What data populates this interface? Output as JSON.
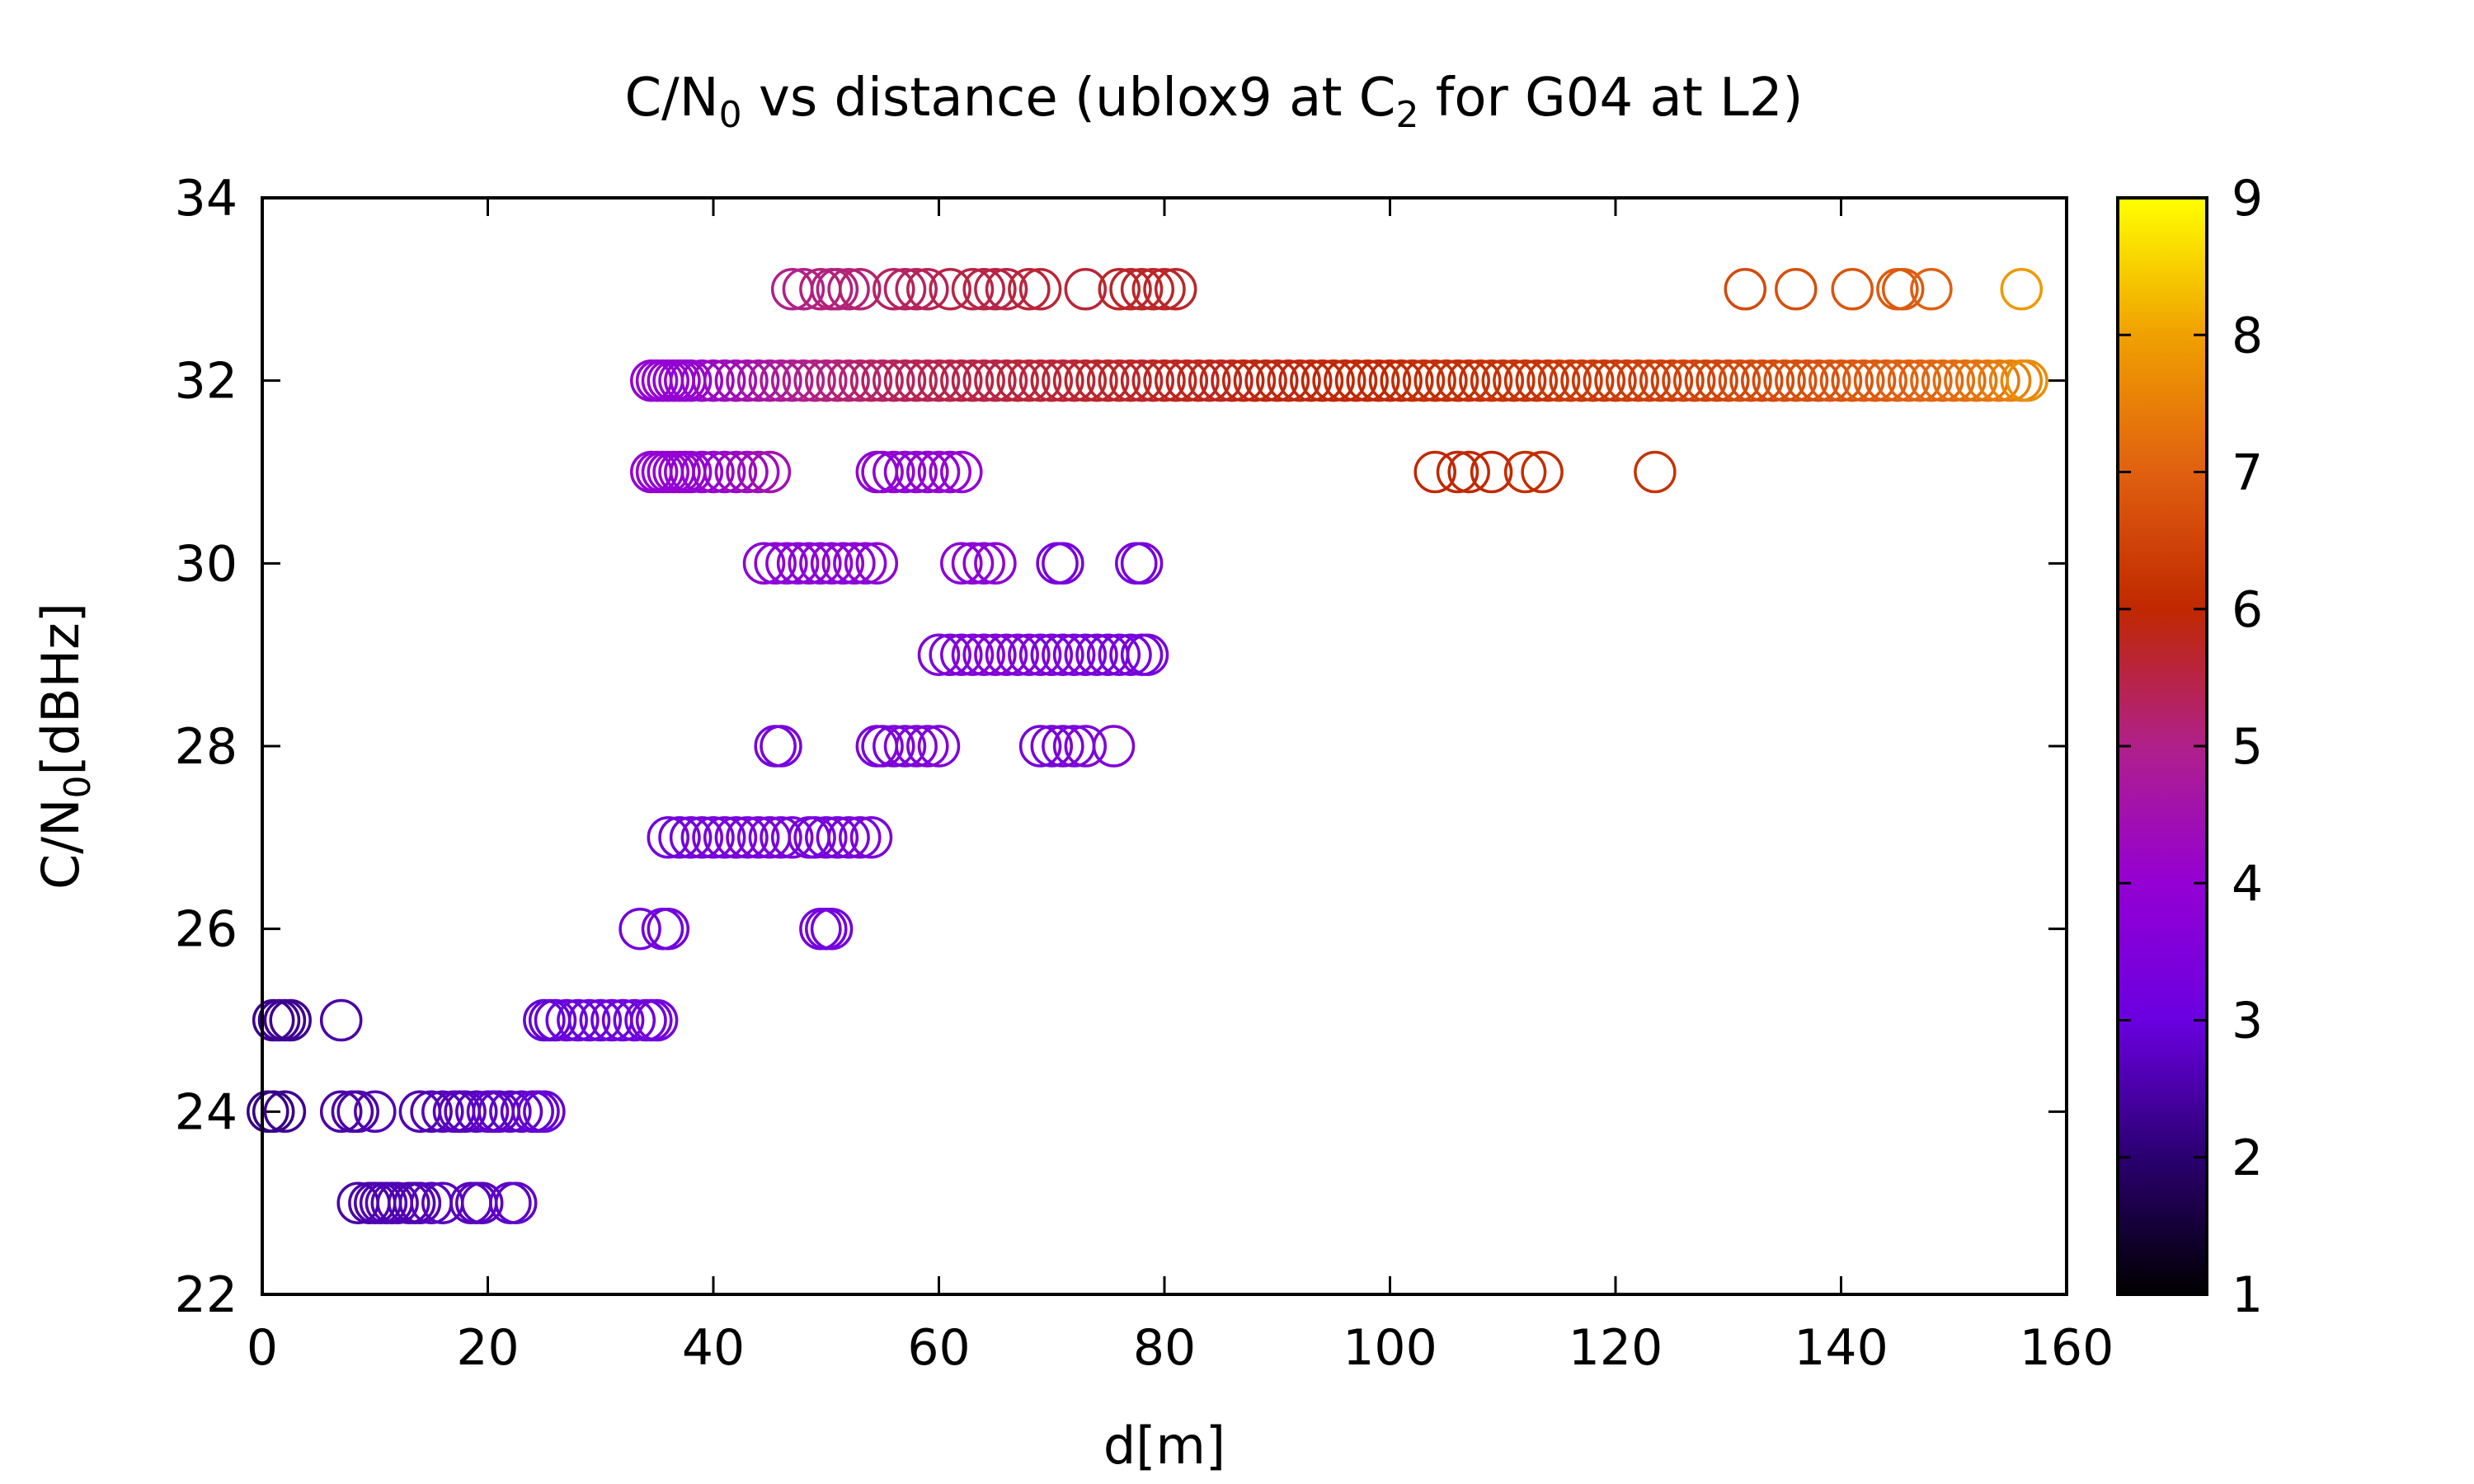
{
  "chart_data": {
    "type": "scatter",
    "title": {
      "pre": "C/N",
      "sub1": "0",
      "mid": " vs distance (ublox9 at C",
      "sub2": "2",
      "post": " for G04 at L2)"
    },
    "xlabel": "d[m]",
    "ylabel": {
      "pre": "C/N",
      "sub": "0",
      "post": "[dBHz]"
    },
    "xlim": [
      0,
      160
    ],
    "ylim": [
      22,
      34
    ],
    "x_ticks": [
      0,
      20,
      40,
      60,
      80,
      100,
      120,
      140,
      160
    ],
    "y_ticks": [
      22,
      24,
      26,
      28,
      30,
      32,
      34
    ],
    "colorbar": {
      "range": [
        1,
        9
      ],
      "ticks": [
        1,
        2,
        3,
        4,
        5,
        6,
        7,
        8,
        9
      ],
      "palette": "black-blue-purple-red-orange-yellow"
    },
    "marker": "open-circle",
    "grid": false,
    "legend": "none",
    "series": [
      {
        "y": 23,
        "x": [
          8.5,
          9.5,
          10,
          10.5,
          11,
          11.5,
          12,
          13,
          13.5,
          14,
          15,
          16,
          18.5,
          19,
          19.5,
          22,
          22.5
        ],
        "c": [
          2.5,
          2.5,
          2.5,
          2.6,
          2.6,
          2.6,
          2.6,
          2.6,
          2.6,
          2.6,
          2.7,
          2.7,
          2.7,
          2.7,
          2.7,
          2.8,
          2.8
        ]
      },
      {
        "y": 24,
        "x": [
          0.5,
          1,
          2,
          7,
          8,
          8.5,
          10,
          14,
          15,
          16,
          17,
          17.5,
          18,
          19,
          20,
          20.5,
          21,
          22,
          23,
          24,
          24.5,
          25
        ],
        "c": [
          2.2,
          2.2,
          2.3,
          2.5,
          2.5,
          2.5,
          2.6,
          2.6,
          2.6,
          2.7,
          2.7,
          2.7,
          2.7,
          2.7,
          2.8,
          2.8,
          2.8,
          2.8,
          2.8,
          2.9,
          2.9,
          2.9
        ]
      },
      {
        "y": 25,
        "x": [
          1,
          1.5,
          2,
          2.5,
          7,
          25,
          25.5,
          26,
          27,
          28,
          29,
          30,
          31,
          32,
          33,
          34,
          34.5,
          35
        ],
        "c": [
          2.3,
          2.3,
          2.3,
          2.3,
          2.5,
          2.9,
          2.9,
          2.9,
          3.0,
          3.0,
          3.0,
          3.0,
          3.1,
          3.1,
          3.1,
          3.1,
          3.2,
          3.2
        ]
      },
      {
        "y": 26,
        "x": [
          33.5,
          35.5,
          36,
          49.5,
          50,
          50.5
        ],
        "c": [
          3.2,
          3.2,
          3.2,
          3.2,
          3.2,
          3.2
        ]
      },
      {
        "y": 27,
        "x": [
          36,
          37,
          38,
          39,
          40,
          41,
          42,
          43,
          44,
          45,
          46,
          47,
          48.5,
          49,
          50,
          51,
          52,
          53,
          54
        ],
        "c": [
          3.2,
          3.2,
          3.2,
          3.3,
          3.3,
          3.3,
          3.3,
          3.3,
          3.4,
          3.4,
          3.4,
          3.3,
          3.3,
          3.3,
          3.3,
          3.3,
          3.3,
          3.4,
          3.4
        ]
      },
      {
        "y": 28,
        "x": [
          45.5,
          46,
          54.5,
          55,
          56,
          57,
          58,
          59,
          60,
          69,
          70,
          71,
          72,
          73,
          75.5
        ],
        "c": [
          3.3,
          3.3,
          3.4,
          3.4,
          3.4,
          3.5,
          3.5,
          3.5,
          3.5,
          3.3,
          3.3,
          3.3,
          3.4,
          3.5,
          3.6
        ]
      },
      {
        "y": 29,
        "x": [
          60,
          61,
          62,
          63,
          64,
          65,
          66,
          67,
          68,
          69,
          70,
          71,
          72,
          73,
          74,
          75,
          76,
          77,
          78,
          78.5
        ],
        "c": [
          3.5,
          3.5,
          3.5,
          3.6,
          3.6,
          3.6,
          3.6,
          3.6,
          3.5,
          3.5,
          3.4,
          3.4,
          3.4,
          3.4,
          3.3,
          3.3,
          3.3,
          3.3,
          3.3,
          3.3
        ]
      },
      {
        "y": 30,
        "x": [
          44.5,
          45.5,
          46.5,
          47.5,
          48.5,
          49.5,
          50.5,
          51.5,
          52.5,
          53.5,
          54.5,
          62,
          63,
          64,
          65,
          70.5,
          71,
          77.5,
          78
        ],
        "c": [
          3.8,
          3.8,
          3.8,
          3.8,
          3.8,
          3.8,
          3.8,
          3.8,
          3.8,
          3.8,
          3.8,
          3.8,
          3.8,
          3.8,
          3.8,
          3.3,
          3.3,
          3.3,
          3.3
        ]
      },
      {
        "y": 31,
        "x": [
          34.5,
          35,
          35.5,
          36,
          36.5,
          37,
          37.5,
          38,
          39,
          40,
          41,
          42,
          43,
          44,
          45,
          54.5,
          55,
          56,
          57,
          58,
          59,
          60,
          61,
          62,
          104,
          106,
          107,
          109,
          112,
          113.5,
          123.5
        ],
        "c": [
          4.0,
          4.0,
          4.0,
          4.0,
          4.0,
          4.0,
          4.0,
          4.0,
          4.0,
          4.1,
          4.1,
          4.2,
          4.3,
          4.4,
          4.5,
          3.9,
          3.9,
          3.9,
          3.9,
          3.9,
          3.9,
          4.0,
          4.0,
          4.0,
          6.0,
          6.0,
          6.0,
          6.0,
          6.1,
          6.1,
          6.2
        ]
      },
      {
        "y": 32,
        "x": [
          34.5,
          35,
          35.5,
          36,
          36.5,
          37,
          37.5,
          38,
          39,
          40,
          41,
          42,
          43,
          44,
          45,
          46,
          47,
          48,
          49,
          50,
          51,
          52,
          53,
          54,
          55,
          56,
          57,
          58,
          59,
          60,
          61,
          62,
          63,
          64,
          65,
          66,
          67,
          68,
          69,
          70,
          71,
          72,
          73,
          74,
          75,
          76,
          77,
          78,
          79,
          80,
          81,
          82,
          83,
          84,
          85,
          86,
          87,
          88,
          89,
          90,
          91,
          92,
          93,
          94,
          95,
          96,
          97,
          98,
          99,
          100,
          101,
          102,
          103,
          104,
          105,
          106,
          107,
          108,
          109,
          110,
          111,
          112,
          113,
          114,
          115,
          116,
          117,
          118,
          119,
          120,
          121,
          122,
          123,
          124,
          125,
          126,
          127,
          128,
          129,
          130,
          131,
          132,
          133,
          134,
          135,
          136,
          137,
          138,
          139,
          140,
          141,
          142,
          143,
          144,
          145,
          146,
          147,
          148,
          149,
          150,
          151,
          152,
          153,
          154,
          155,
          156,
          156.5
        ],
        "c": [
          4.0,
          4.0,
          4.0,
          4.0,
          4.0,
          4.0,
          4.0,
          4.0,
          4.1,
          4.2,
          4.3,
          4.4,
          4.5,
          4.6,
          4.7,
          4.8,
          4.9,
          5.0,
          5.0,
          5.1,
          5.1,
          5.2,
          5.2,
          5.3,
          5.3,
          5.3,
          5.4,
          5.4,
          5.4,
          5.4,
          5.5,
          5.5,
          5.5,
          5.5,
          5.5,
          5.5,
          5.6,
          5.6,
          5.6,
          5.6,
          5.6,
          5.6,
          5.7,
          5.7,
          5.7,
          5.7,
          5.7,
          5.7,
          5.7,
          5.8,
          5.8,
          5.8,
          5.8,
          5.8,
          5.8,
          5.8,
          5.9,
          5.9,
          5.9,
          5.9,
          5.9,
          5.9,
          5.9,
          6.0,
          6.0,
          6.0,
          6.0,
          6.0,
          6.0,
          6.0,
          6.0,
          6.1,
          6.1,
          6.1,
          6.1,
          6.1,
          6.1,
          6.1,
          6.2,
          6.2,
          6.2,
          6.2,
          6.2,
          6.2,
          6.3,
          6.3,
          6.3,
          6.3,
          6.3,
          6.3,
          6.4,
          6.4,
          6.4,
          6.4,
          6.4,
          6.5,
          6.5,
          6.5,
          6.5,
          6.5,
          6.6,
          6.6,
          6.6,
          6.6,
          6.7,
          6.7,
          6.7,
          6.7,
          6.8,
          6.8,
          6.8,
          6.9,
          6.9,
          6.9,
          7.0,
          7.0,
          7.0,
          7.1,
          7.1,
          7.2,
          7.2,
          7.3,
          7.3,
          7.4,
          7.5,
          7.6,
          7.7
        ]
      },
      {
        "y": 33,
        "x": [
          47,
          48,
          49.5,
          50.5,
          51,
          52,
          53,
          56,
          57,
          58,
          59,
          61,
          63,
          64,
          65,
          66,
          68,
          69,
          73,
          76,
          77,
          78,
          79,
          80,
          81,
          131.5,
          136,
          141,
          145,
          145.5,
          148,
          156
        ],
        "c": [
          5.0,
          5.0,
          5.1,
          5.1,
          5.1,
          5.1,
          5.2,
          5.3,
          5.3,
          5.3,
          5.4,
          5.5,
          5.5,
          5.5,
          5.5,
          5.5,
          5.6,
          5.6,
          5.6,
          5.7,
          5.7,
          5.7,
          5.7,
          5.7,
          5.7,
          6.6,
          6.7,
          6.8,
          6.9,
          6.9,
          7.0,
          7.9
        ]
      }
    ]
  }
}
